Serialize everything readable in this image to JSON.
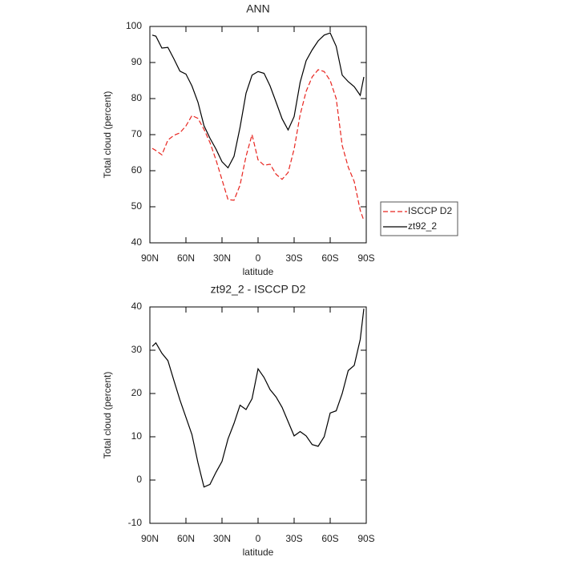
{
  "chart_data": [
    {
      "type": "line",
      "title": "ANN",
      "x_label": "latitude",
      "y_label": "Total cloud (percent)",
      "x": [
        88,
        85,
        80,
        75,
        70,
        65,
        60,
        55,
        50,
        45,
        40,
        35,
        30,
        25,
        20,
        15,
        10,
        5,
        0,
        -5,
        -10,
        -15,
        -20,
        -25,
        -30,
        -35,
        -40,
        -45,
        -50,
        -55,
        -60,
        -65,
        -70,
        -75,
        -80,
        -85,
        -88
      ],
      "series": [
        {
          "name": "ISCCP D2",
          "color": "#e8251f",
          "style": "dashed",
          "values": [
            66.2,
            65.6,
            64.4,
            68.5,
            69.8,
            70.5,
            72.4,
            75.3,
            74.5,
            71.5,
            67.8,
            63,
            57.5,
            52,
            51.8,
            56,
            64,
            70,
            63,
            61.5,
            61.8,
            59,
            57.6,
            59.5,
            66,
            75.5,
            82,
            86,
            88,
            87.5,
            85,
            80,
            67,
            61,
            57,
            49,
            46.2
          ]
        },
        {
          "name": "zt92_2",
          "color": "#000000",
          "style": "solid",
          "values": [
            97.6,
            97.3,
            94,
            94.2,
            91,
            87.6,
            86.8,
            83.5,
            79,
            72.5,
            69,
            66,
            62.5,
            60.8,
            64,
            72,
            81.5,
            86.5,
            87.5,
            87,
            83.5,
            79,
            74.4,
            71.3,
            75,
            84.5,
            90.5,
            93.5,
            96,
            97.6,
            98.2,
            94.5,
            86.5,
            84.7,
            83.3,
            80.9,
            86
          ]
        }
      ],
      "xlim": [
        90,
        -90
      ],
      "xticks": [
        {
          "value": 90,
          "label": "90N"
        },
        {
          "value": 60,
          "label": "60N"
        },
        {
          "value": 30,
          "label": "30N"
        },
        0,
        {
          "value": -30,
          "label": "30S"
        },
        {
          "value": -60,
          "label": "60S"
        },
        {
          "value": -90,
          "label": "90S"
        }
      ],
      "ylim": [
        40,
        100
      ],
      "yticks": [
        40,
        50,
        60,
        70,
        80,
        90,
        100
      ],
      "legend": "right"
    },
    {
      "type": "line",
      "title": "zt92_2 - ISCCP D2",
      "x_label": "latitude",
      "y_label": "Total cloud (percent)",
      "x": [
        88,
        85,
        80,
        75,
        70,
        65,
        60,
        55,
        50,
        45,
        40,
        35,
        30,
        25,
        20,
        15,
        10,
        5,
        0,
        -5,
        -10,
        -15,
        -20,
        -25,
        -30,
        -35,
        -40,
        -45,
        -50,
        -55,
        -60,
        -65,
        -70,
        -75,
        -80,
        -85,
        -88
      ],
      "values": [
        30.9,
        31.7,
        29.3,
        27.6,
        23,
        18.5,
        14.5,
        10.5,
        4,
        -1.6,
        -1,
        1.8,
        4.3,
        9.5,
        13.1,
        17.3,
        16.3,
        18.8,
        25.7,
        23.7,
        20.9,
        19.2,
        16.8,
        13.5,
        10.2,
        11.2,
        10.2,
        8.2,
        7.8,
        10,
        15.5,
        16,
        20,
        25.3,
        26.5,
        32.5,
        39.6
      ],
      "color": "#000000",
      "xlim": [
        90,
        -90
      ],
      "xticks": [
        {
          "value": 90,
          "label": "90N"
        },
        {
          "value": 60,
          "label": "60N"
        },
        {
          "value": 30,
          "label": "30N"
        },
        0,
        {
          "value": -30,
          "label": "30S"
        },
        {
          "value": -60,
          "label": "60S"
        },
        {
          "value": -90,
          "label": "90S"
        }
      ],
      "ylim": [
        -10,
        40
      ],
      "yticks": [
        -10,
        0,
        10,
        20,
        30,
        40
      ]
    }
  ]
}
